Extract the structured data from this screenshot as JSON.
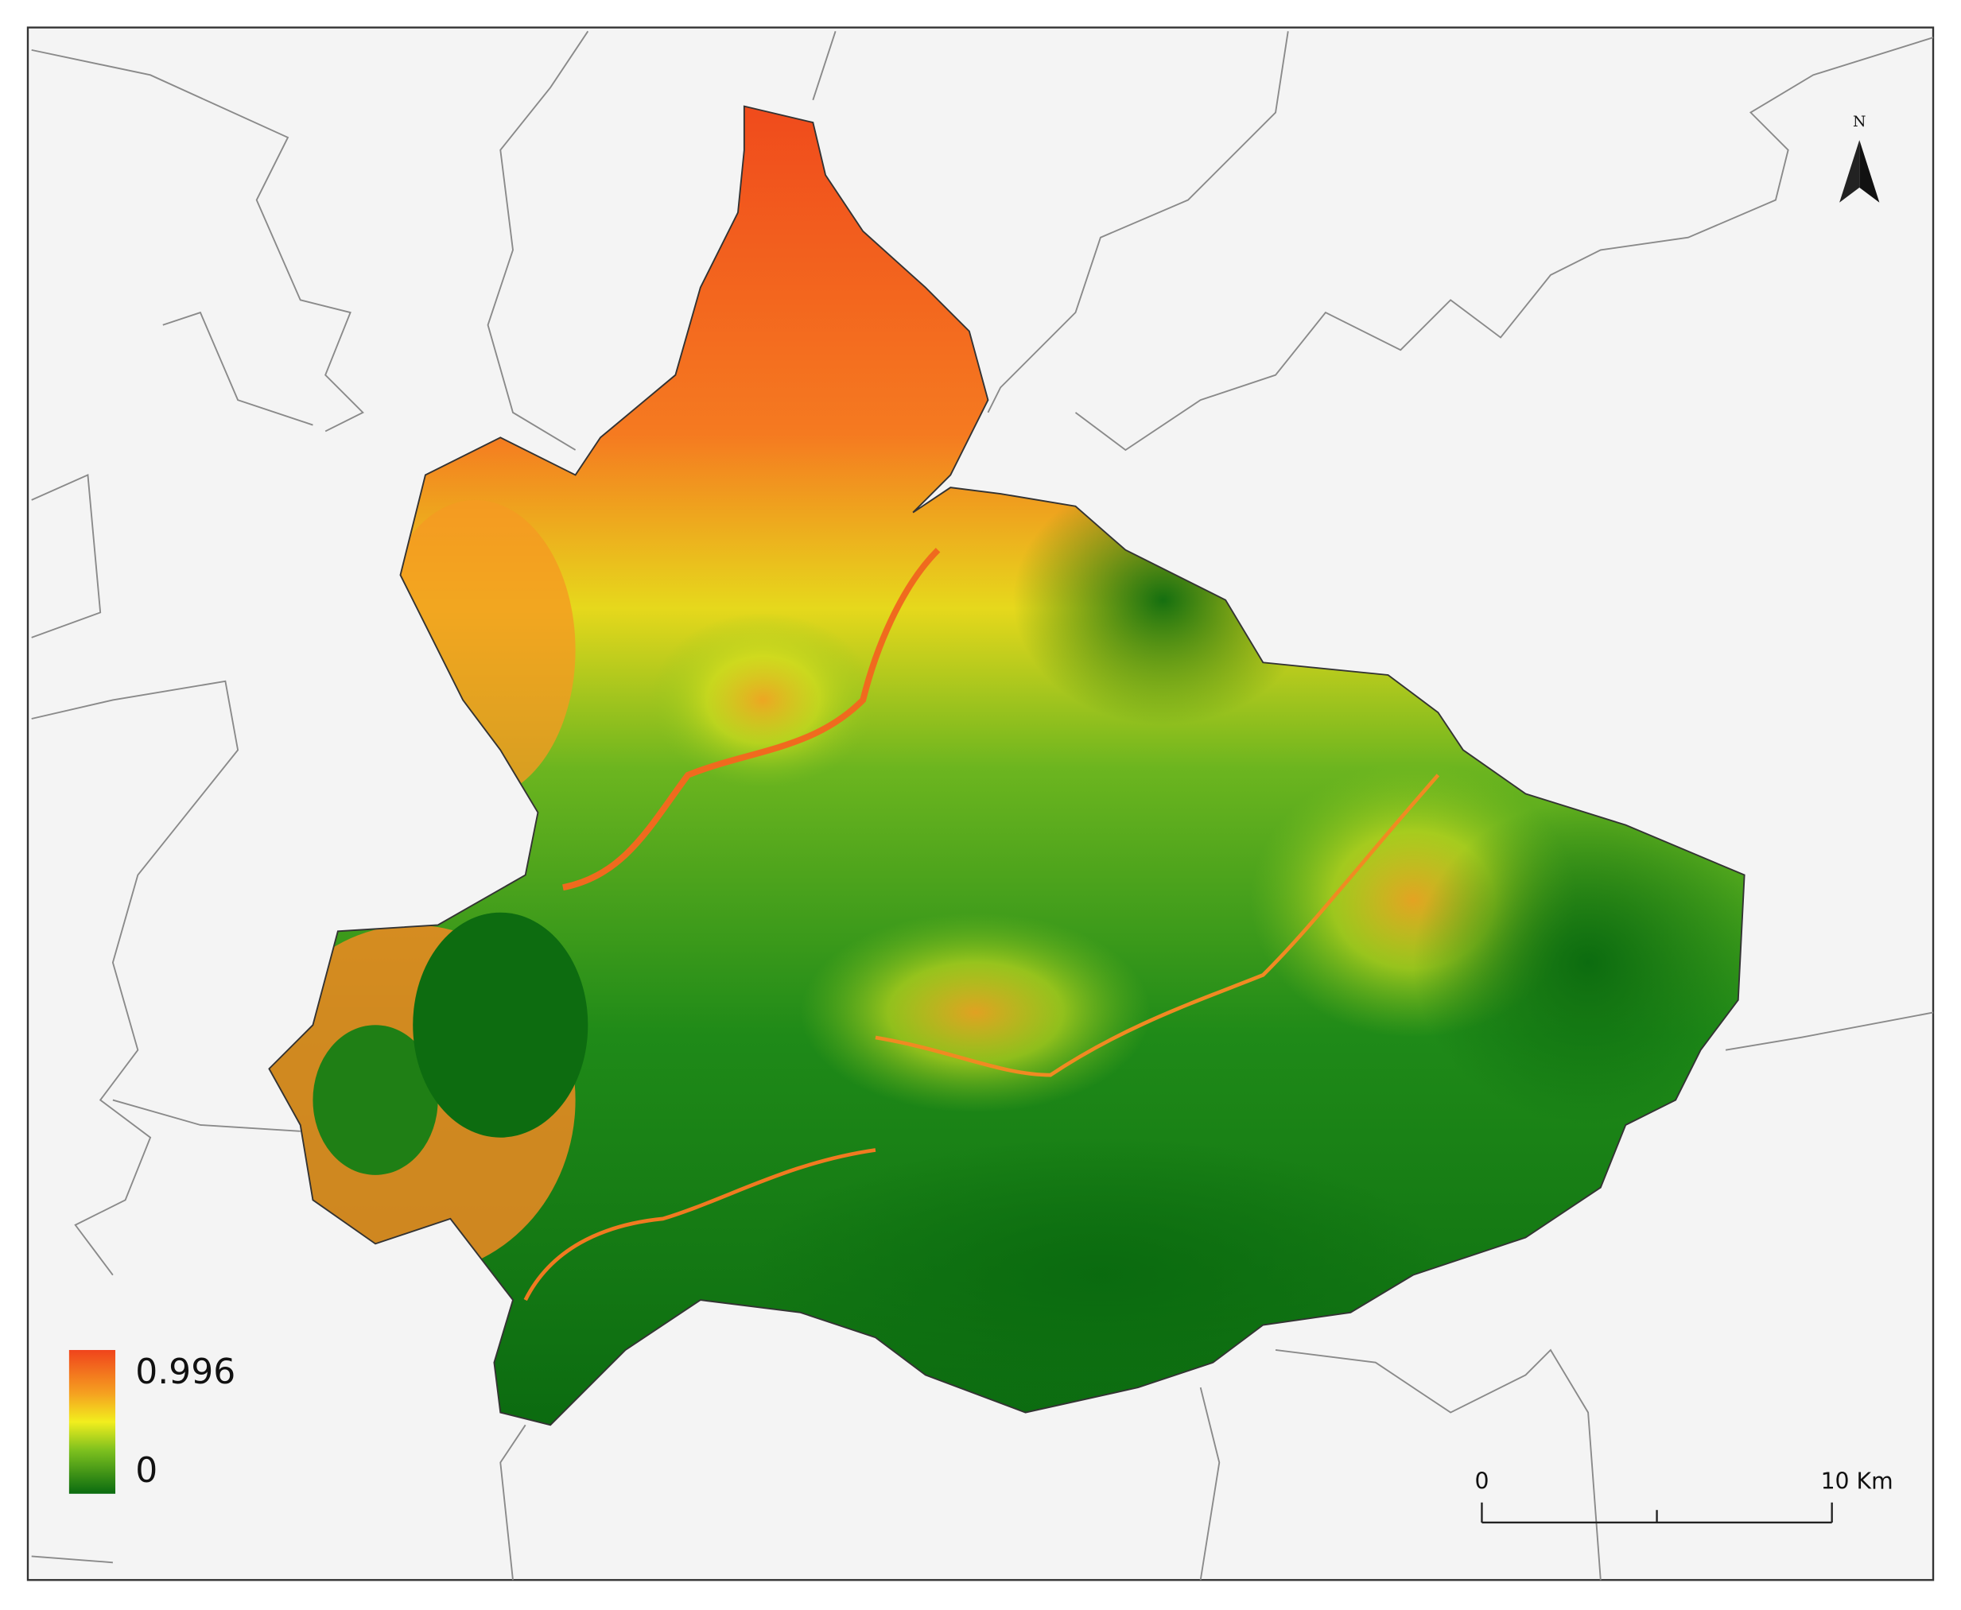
{
  "north_arrow": "N",
  "legend": {
    "max": "0.996",
    "min": "0"
  },
  "scale_bar": {
    "start": "0",
    "end": "10 Km"
  }
}
